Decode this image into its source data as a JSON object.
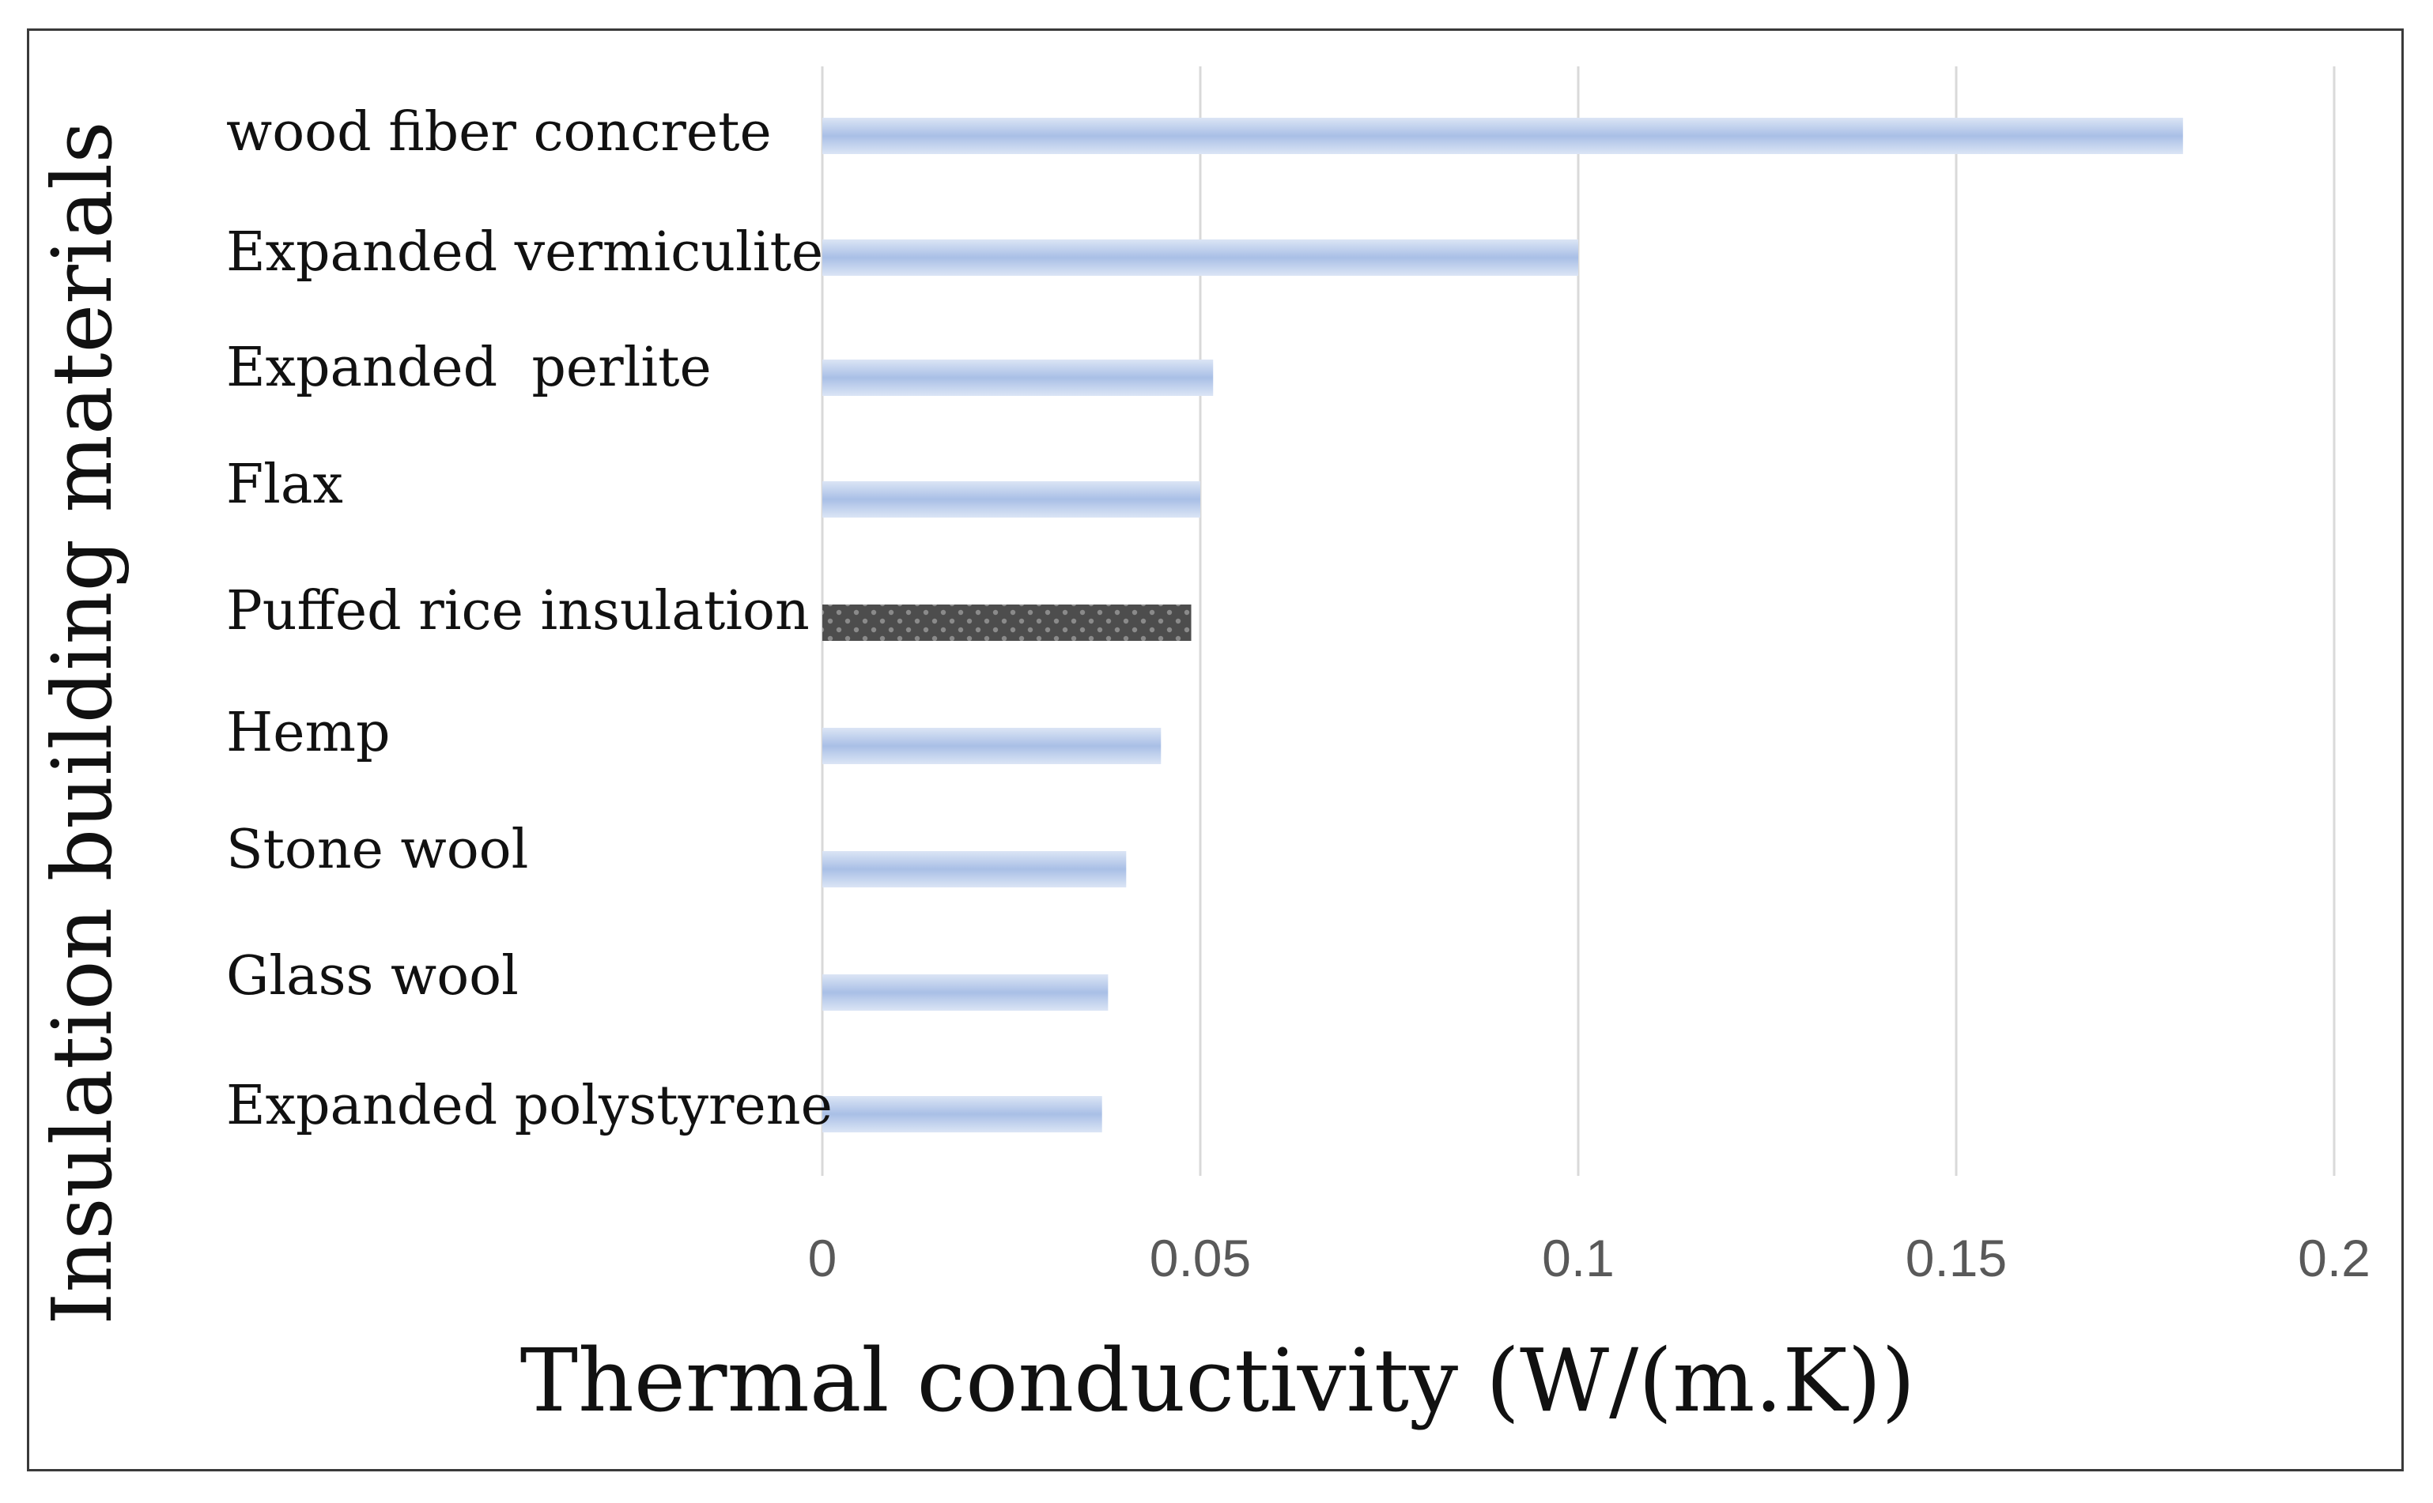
{
  "chart_data": {
    "type": "bar",
    "orientation": "horizontal",
    "categories": [
      "wood fiber concrete",
      "Expanded vermiculite",
      "Expanded  perlite",
      "Flax",
      "Puffed rice insulation",
      "Hemp",
      "Stone wool",
      "Glass wool",
      "Expanded polystyrene"
    ],
    "values": [
      0.18,
      0.1,
      0.0517,
      0.05,
      0.0488,
      0.0448,
      0.0402,
      0.0378,
      0.037
    ],
    "highlight_index": 4,
    "xlabel": "Thermal conductivity (W/(m.K))",
    "ylabel": "Insulation building materials",
    "xlim": [
      0,
      0.2
    ],
    "xticks": [
      0,
      0.05,
      0.1,
      0.15,
      0.2
    ],
    "xtick_labels": [
      "0",
      "0.05",
      "0.1",
      "0.15",
      "0.2"
    ],
    "grid": true,
    "colors": {
      "bar_light": "#dbe5f5",
      "bar_mid": "#a9bfe6",
      "bar_dark": "#8eaadb",
      "highlight": "#4d4d4d",
      "highlight_dots": "#8a8a8a",
      "gridline": "#d9d9d9"
    }
  }
}
